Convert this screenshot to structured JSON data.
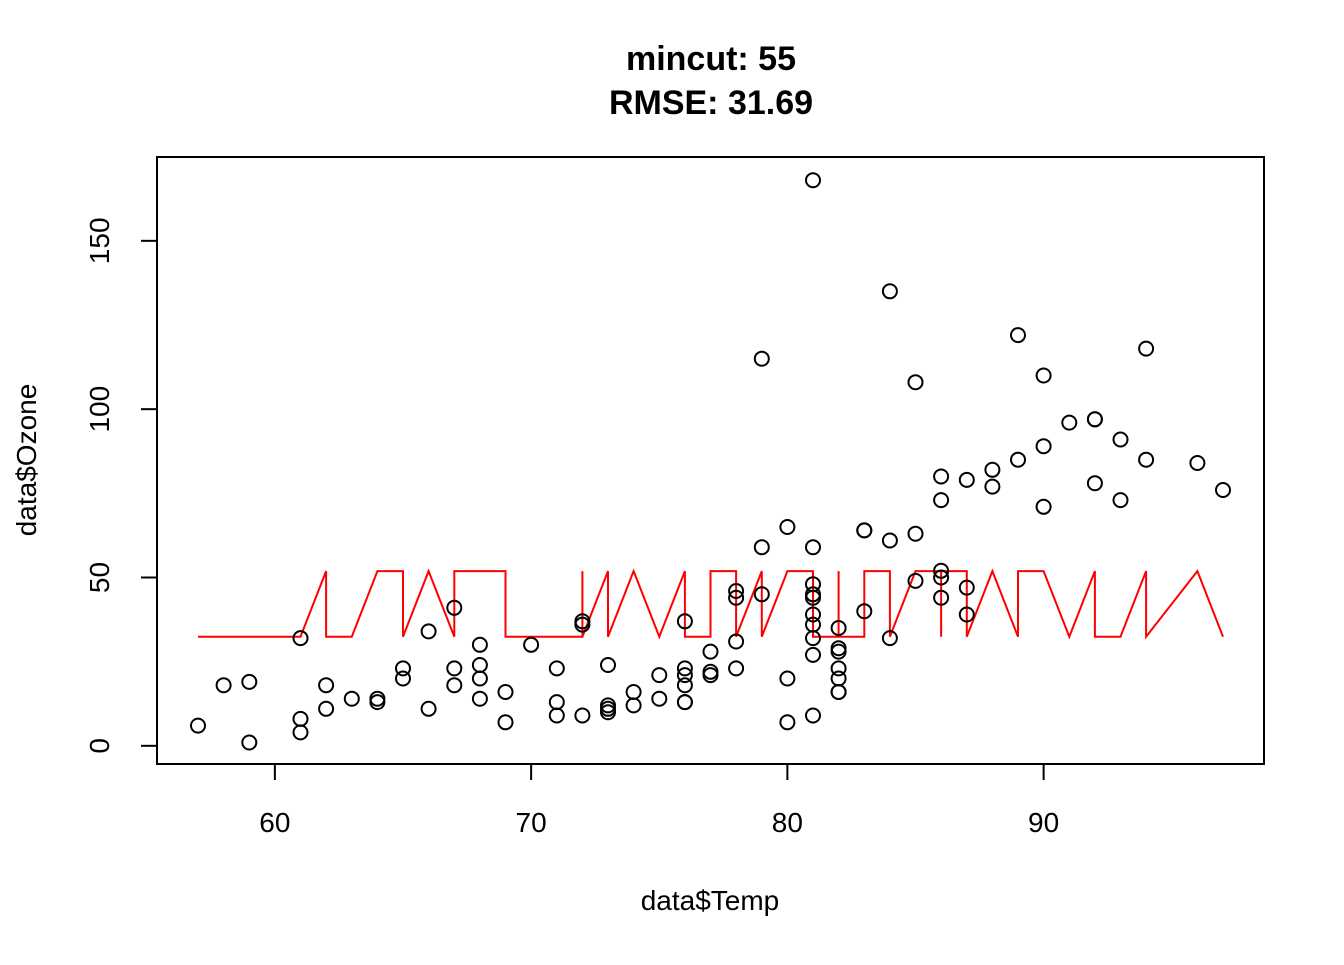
{
  "chart_data": {
    "type": "scatter",
    "title": "mincut: 55",
    "subtitle": "RMSE: 31.69",
    "xlabel": "data$Temp",
    "ylabel": "data$Ozone",
    "xlim": [
      55.4,
      98.6
    ],
    "ylim": [
      -5.4,
      174.9
    ],
    "x_ticks": [
      60,
      70,
      80,
      90
    ],
    "y_ticks": [
      0,
      50,
      100,
      150
    ],
    "grid": false,
    "legend": "none",
    "colors": {
      "points": "#000000",
      "fit_line": "#ff0000"
    },
    "points": [
      [
        57,
        6
      ],
      [
        58,
        18
      ],
      [
        59,
        1
      ],
      [
        59,
        19
      ],
      [
        61,
        32
      ],
      [
        61,
        8
      ],
      [
        61,
        4
      ],
      [
        62,
        18
      ],
      [
        62,
        11
      ],
      [
        63,
        14
      ],
      [
        64,
        14
      ],
      [
        64,
        13
      ],
      [
        65,
        23
      ],
      [
        65,
        20
      ],
      [
        66,
        34
      ],
      [
        66,
        11
      ],
      [
        67,
        41
      ],
      [
        67,
        23
      ],
      [
        67,
        18
      ],
      [
        68,
        30
      ],
      [
        68,
        24
      ],
      [
        68,
        20
      ],
      [
        68,
        14
      ],
      [
        69,
        16
      ],
      [
        69,
        7
      ],
      [
        70,
        30
      ],
      [
        71,
        23
      ],
      [
        71,
        13
      ],
      [
        71,
        9
      ],
      [
        72,
        37
      ],
      [
        72,
        36
      ],
      [
        72,
        9
      ],
      [
        73,
        24
      ],
      [
        73,
        12
      ],
      [
        73,
        11
      ],
      [
        73,
        10
      ],
      [
        74,
        16
      ],
      [
        74,
        12
      ],
      [
        75,
        21
      ],
      [
        75,
        14
      ],
      [
        76,
        37
      ],
      [
        76,
        23
      ],
      [
        76,
        21
      ],
      [
        76,
        18
      ],
      [
        76,
        13
      ],
      [
        76,
        13
      ],
      [
        77,
        28
      ],
      [
        77,
        22
      ],
      [
        77,
        21
      ],
      [
        78,
        46
      ],
      [
        78,
        44
      ],
      [
        78,
        31
      ],
      [
        78,
        23
      ],
      [
        79,
        115
      ],
      [
        79,
        59
      ],
      [
        79,
        45
      ],
      [
        80,
        65
      ],
      [
        80,
        20
      ],
      [
        80,
        7
      ],
      [
        81,
        168
      ],
      [
        81,
        59
      ],
      [
        81,
        48
      ],
      [
        81,
        45
      ],
      [
        81,
        44
      ],
      [
        81,
        39
      ],
      [
        81,
        36
      ],
      [
        81,
        32
      ],
      [
        81,
        27
      ],
      [
        81,
        9
      ],
      [
        82,
        35
      ],
      [
        82,
        29
      ],
      [
        82,
        28
      ],
      [
        82,
        23
      ],
      [
        82,
        20
      ],
      [
        82,
        16
      ],
      [
        82,
        16
      ],
      [
        83,
        64
      ],
      [
        83,
        64
      ],
      [
        83,
        40
      ],
      [
        84,
        135
      ],
      [
        84,
        61
      ],
      [
        84,
        32
      ],
      [
        85,
        108
      ],
      [
        85,
        63
      ],
      [
        85,
        49
      ],
      [
        86,
        80
      ],
      [
        86,
        73
      ],
      [
        86,
        52
      ],
      [
        86,
        50
      ],
      [
        86,
        44
      ],
      [
        87,
        79
      ],
      [
        87,
        47
      ],
      [
        87,
        39
      ],
      [
        88,
        82
      ],
      [
        88,
        77
      ],
      [
        89,
        122
      ],
      [
        89,
        85
      ],
      [
        90,
        110
      ],
      [
        90,
        89
      ],
      [
        90,
        71
      ],
      [
        91,
        96
      ],
      [
        92,
        97
      ],
      [
        92,
        97
      ],
      [
        92,
        78
      ],
      [
        93,
        91
      ],
      [
        93,
        73
      ],
      [
        94,
        118
      ],
      [
        94,
        85
      ],
      [
        96,
        84
      ],
      [
        97,
        76
      ]
    ],
    "fit_line": [
      [
        57,
        32.4
      ],
      [
        61,
        32.4
      ],
      [
        62,
        51.9
      ],
      [
        62,
        32.4
      ],
      [
        63,
        32.4
      ],
      [
        64,
        51.9
      ],
      [
        65,
        51.9
      ],
      [
        65,
        32.4
      ],
      [
        66,
        51.9
      ],
      [
        67,
        32.4
      ],
      [
        67,
        51.9
      ],
      [
        69,
        51.9
      ],
      [
        69,
        32.4
      ],
      [
        72,
        32.4
      ],
      [
        72,
        51.9
      ],
      [
        72,
        32.4
      ],
      [
        73,
        51.9
      ],
      [
        73,
        32.4
      ],
      [
        74,
        51.9
      ],
      [
        75,
        32.4
      ],
      [
        76,
        51.9
      ],
      [
        76,
        32.4
      ],
      [
        77,
        32.4
      ],
      [
        77,
        51.9
      ],
      [
        78,
        51.9
      ],
      [
        78,
        32.4
      ],
      [
        79,
        51.9
      ],
      [
        79,
        32.4
      ],
      [
        80,
        51.9
      ],
      [
        81,
        51.9
      ],
      [
        81,
        32.4
      ],
      [
        82,
        32.4
      ],
      [
        82,
        51.9
      ],
      [
        82,
        32.4
      ],
      [
        83,
        32.4
      ],
      [
        83,
        51.9
      ],
      [
        84,
        51.9
      ],
      [
        84,
        32.4
      ],
      [
        85,
        51.9
      ],
      [
        86,
        51.9
      ],
      [
        86,
        32.4
      ],
      [
        86,
        51.9
      ],
      [
        87,
        51.9
      ],
      [
        87,
        32.4
      ],
      [
        88,
        51.9
      ],
      [
        89,
        32.4
      ],
      [
        89,
        51.9
      ],
      [
        90,
        51.9
      ],
      [
        91,
        32.4
      ],
      [
        92,
        51.9
      ],
      [
        92,
        32.4
      ],
      [
        93,
        32.4
      ],
      [
        94,
        51.9
      ],
      [
        94,
        32.4
      ],
      [
        96,
        51.9
      ],
      [
        97,
        32.4
      ]
    ]
  }
}
